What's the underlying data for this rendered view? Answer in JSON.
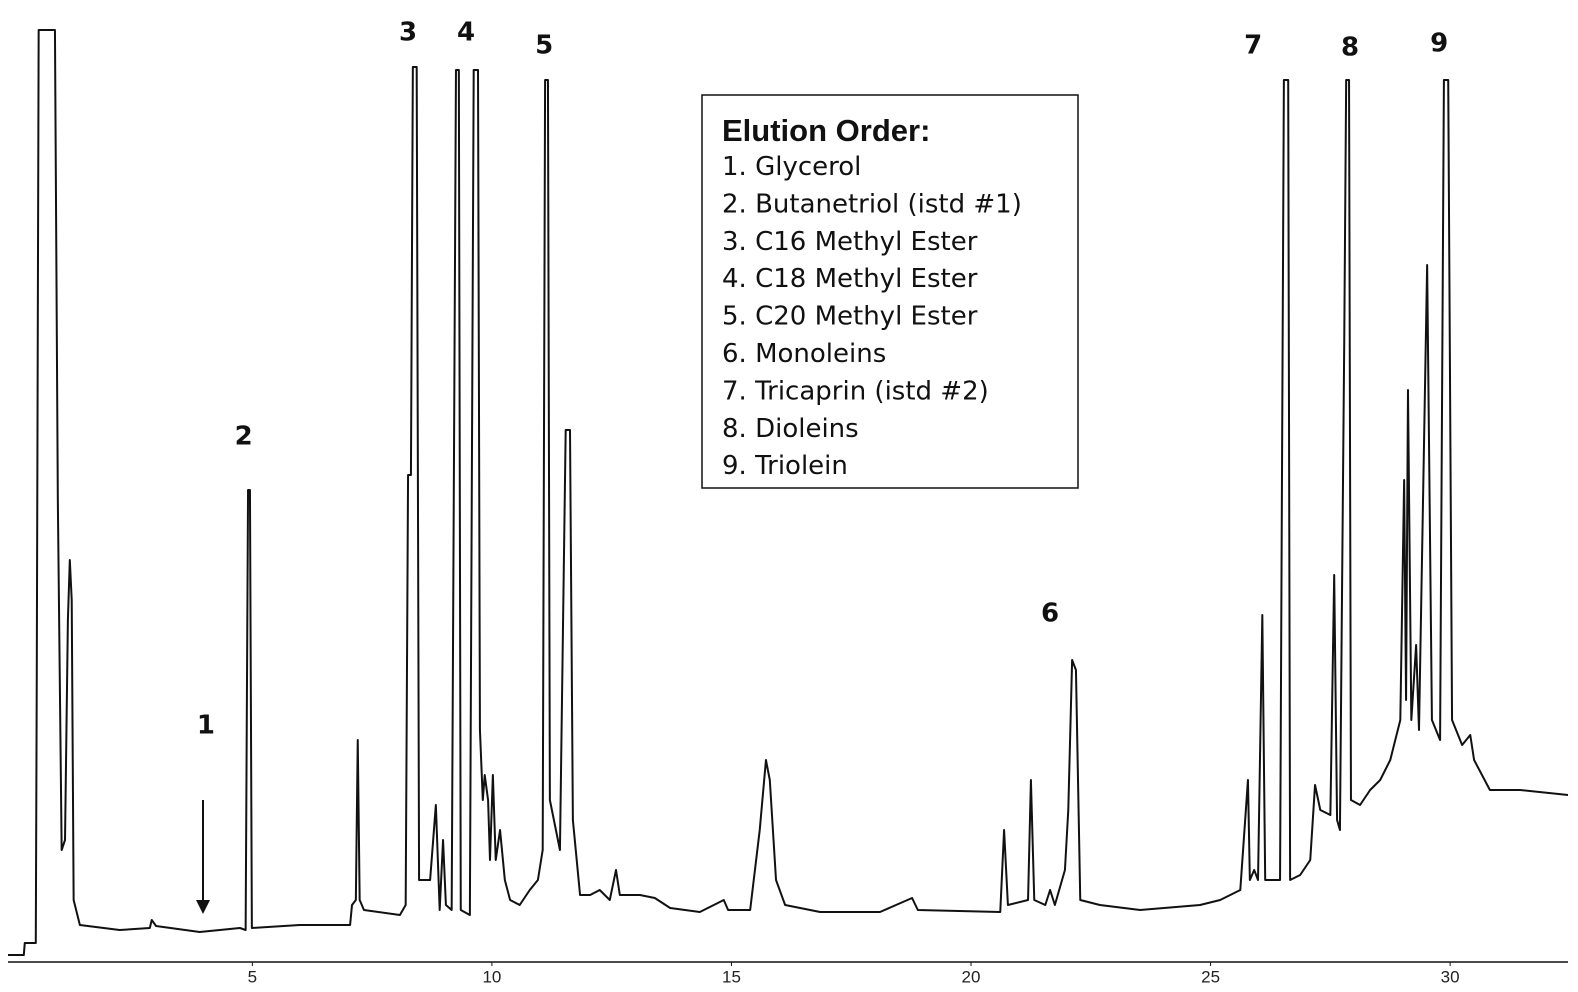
{
  "chart_data": {
    "type": "line",
    "color": "#111111",
    "xlim": [
      -0.1,
      32.46
    ],
    "ylim": [
      0,
      940
    ],
    "xticks": [
      5,
      10,
      15,
      20,
      25,
      30
    ],
    "x": [
      -0.1,
      0.23,
      0.25,
      0.48,
      0.5,
      0.54,
      0.58,
      0.81,
      0.88,
      0.94,
      1.02,
      1.09,
      1.15,
      1.19,
      1.23,
      1.27,
      1.4,
      2.23,
      2.86,
      2.9,
      2.99,
      3.9,
      4.74,
      4.86,
      4.91,
      4.95,
      4.99,
      5.99,
      7.04,
      7.08,
      7.16,
      7.2,
      7.24,
      7.33,
      8.08,
      8.2,
      8.25,
      8.31,
      8.35,
      8.43,
      8.48,
      8.71,
      8.83,
      8.91,
      8.98,
      9.04,
      9.16,
      9.25,
      9.31,
      9.35,
      9.54,
      9.62,
      9.71,
      9.75,
      9.81,
      9.85,
      9.92,
      9.96,
      10.02,
      10.08,
      10.17,
      10.27,
      10.38,
      10.58,
      10.79,
      10.96,
      11.06,
      11.11,
      11.17,
      11.21,
      11.42,
      11.54,
      11.63,
      11.69,
      11.84,
      12.05,
      12.25,
      12.46,
      12.59,
      12.67,
      13.09,
      13.4,
      13.72,
      14.34,
      14.84,
      14.93,
      15.39,
      15.59,
      15.72,
      15.8,
      15.93,
      16.12,
      16.85,
      18.1,
      18.77,
      18.89,
      20.61,
      20.69,
      20.77,
      21.19,
      21.25,
      21.32,
      21.55,
      21.65,
      21.75,
      21.96,
      22.03,
      22.11,
      22.19,
      22.28,
      22.69,
      23.53,
      24.78,
      25.2,
      25.62,
      25.78,
      25.82,
      25.91,
      25.99,
      26.08,
      26.14,
      26.45,
      26.53,
      26.62,
      26.66,
      26.87,
      27.08,
      27.18,
      27.29,
      27.5,
      27.58,
      27.64,
      27.7,
      27.79,
      27.83,
      27.89,
      27.93,
      28.12,
      28.33,
      28.54,
      28.75,
      28.96,
      29.04,
      29.08,
      29.12,
      29.19,
      29.29,
      29.35,
      29.52,
      29.62,
      29.79,
      29.87,
      29.96,
      30.04,
      30.25,
      30.42,
      30.5,
      30.83,
      31.46,
      32.46
    ],
    "values": [
      7,
      7,
      19,
      19,
      282,
      932,
      932,
      932,
      932,
      462,
      112,
      122,
      342,
      402,
      362,
      62,
      37,
      32,
      34,
      42,
      36,
      30,
      34,
      32,
      472,
      472,
      34,
      37,
      37,
      57,
      62,
      222,
      62,
      52,
      47,
      57,
      487,
      487,
      895,
      895,
      82,
      82,
      157,
      52,
      122,
      57,
      52,
      892,
      892,
      52,
      47,
      892,
      892,
      232,
      162,
      187,
      162,
      102,
      187,
      102,
      132,
      82,
      62,
      57,
      72,
      82,
      112,
      882,
      882,
      162,
      112,
      532,
      532,
      142,
      67,
      67,
      72,
      62,
      92,
      67,
      67,
      64,
      54,
      50,
      62,
      52,
      52,
      132,
      202,
      182,
      82,
      57,
      50,
      50,
      64,
      52,
      50,
      132,
      57,
      62,
      182,
      62,
      57,
      72,
      57,
      92,
      152,
      302,
      292,
      62,
      57,
      52,
      57,
      62,
      72,
      182,
      82,
      92,
      82,
      347,
      82,
      82,
      882,
      882,
      82,
      87,
      102,
      177,
      152,
      147,
      387,
      142,
      132,
      622,
      882,
      882,
      162,
      157,
      172,
      182,
      202,
      242,
      482,
      262,
      572,
      242,
      317,
      232,
      697,
      242,
      222,
      882,
      882,
      242,
      217,
      227,
      202,
      172,
      172,
      167
    ],
    "annotations": [
      {
        "text": "1",
        "x": 4.03,
        "y": 247
      },
      {
        "text": "2",
        "x": 4.82,
        "y": 536
      },
      {
        "text": "3",
        "x": 8.25,
        "y": 940
      },
      {
        "text": "4",
        "x": 9.46,
        "y": 940
      },
      {
        "text": "5",
        "x": 11.09,
        "y": 927
      },
      {
        "text": "6",
        "x": 21.65,
        "y": 359
      },
      {
        "text": "7",
        "x": 25.89,
        "y": 927
      },
      {
        "text": "8",
        "x": 27.91,
        "y": 925
      },
      {
        "text": "9",
        "x": 29.77,
        "y": 929
      }
    ],
    "text_box": {
      "title": "Elution Order:",
      "lines": [
        "1. Glycerol",
        "2. Butanetriol (istd #1)",
        "3. C16 Methyl Ester",
        "4. C18 Methyl Ester",
        "5. C20 Methyl Ester",
        "6. Monoleins",
        "7. Tricaprin (istd #2)",
        "8. Dioleins",
        "9. Triolein"
      ]
    }
  }
}
